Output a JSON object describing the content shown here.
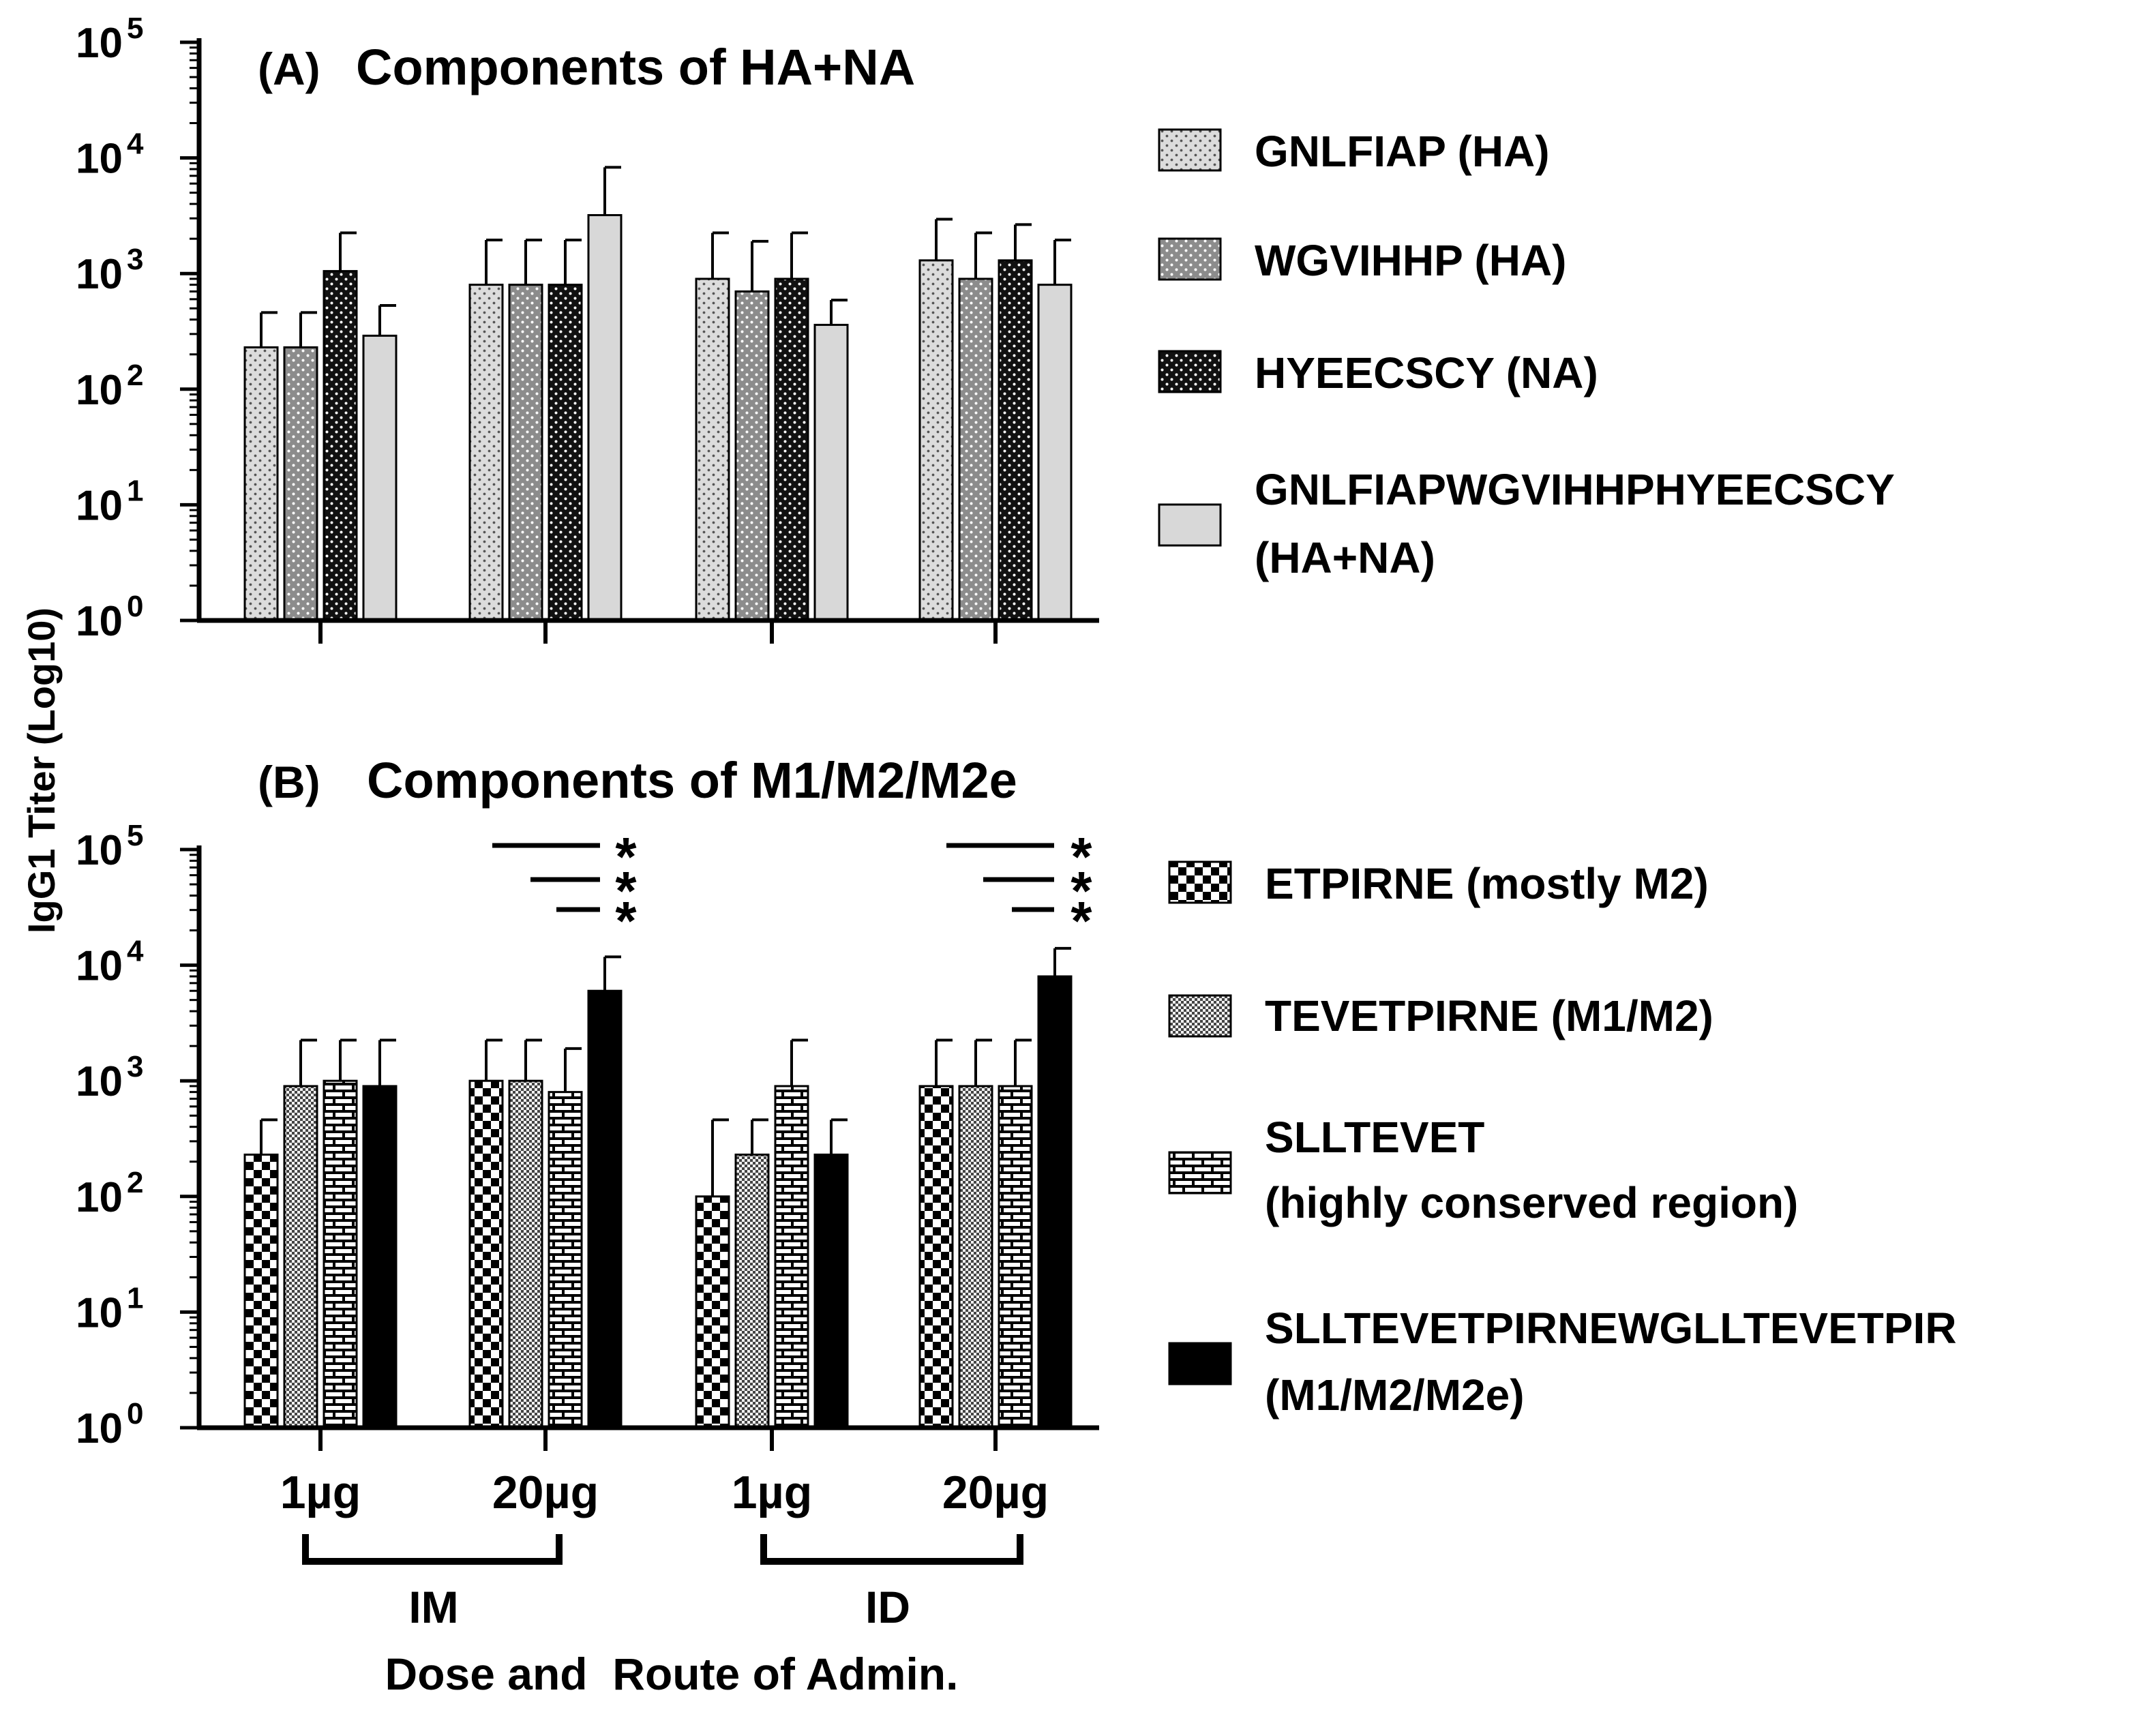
{
  "chart_data": [
    {
      "type": "bar",
      "panel": "A",
      "panel_label": "(A)",
      "title": "Components of HA+NA",
      "ylabel": "IgG1 Titer (Log10)",
      "yscale": "log",
      "ylim": [
        1,
        100000
      ],
      "y_ticks": [
        {
          "base": "10",
          "exp": "0"
        },
        {
          "base": "10",
          "exp": "1"
        },
        {
          "base": "10",
          "exp": "2"
        },
        {
          "base": "10",
          "exp": "3"
        },
        {
          "base": "10",
          "exp": "4"
        },
        {
          "base": "10",
          "exp": "5"
        }
      ],
      "categories": [
        "1µg IM",
        "20µg IM",
        "1µg ID",
        "20µg ID"
      ],
      "legend_position": "right",
      "series": [
        {
          "name": "GNLFIAP (HA)",
          "pattern": "dots-light",
          "values": [
            230,
            800,
            900,
            1300
          ],
          "error_upper": [
            460,
            1950,
            2250,
            2950
          ]
        },
        {
          "name": "WGVIHHP (HA)",
          "pattern": "dots-mid",
          "values": [
            230,
            800,
            700,
            900
          ],
          "error_upper": [
            460,
            1950,
            1900,
            2250
          ]
        },
        {
          "name": "HYEECSCY (NA)",
          "pattern": "dots-dark",
          "values": [
            1050,
            800,
            900,
            1300
          ],
          "error_upper": [
            2250,
            1950,
            2250,
            2650
          ]
        },
        {
          "name_lines": [
            "GNLFIAPWGVIHHPHYEECSCY",
            "(HA+NA)"
          ],
          "pattern": "solid-light",
          "values": [
            290,
            3200,
            360,
            800
          ],
          "error_upper": [
            530,
            8300,
            590,
            1950
          ]
        }
      ]
    },
    {
      "type": "bar",
      "panel": "B",
      "panel_label": "(B)",
      "title": "Components of M1/M2/M2e",
      "ylabel": "IgG1 Titer (Log10)",
      "yscale": "log",
      "ylim": [
        1,
        100000
      ],
      "y_ticks": [
        {
          "base": "10",
          "exp": "0"
        },
        {
          "base": "10",
          "exp": "1"
        },
        {
          "base": "10",
          "exp": "2"
        },
        {
          "base": "10",
          "exp": "3"
        },
        {
          "base": "10",
          "exp": "4"
        },
        {
          "base": "10",
          "exp": "5"
        }
      ],
      "categories": [
        "1µg",
        "20µg",
        "1µg",
        "20µg"
      ],
      "group_labels": [
        "IM",
        "ID"
      ],
      "xlabel": "Dose and  Route of Admin.",
      "legend_position": "right",
      "significance_marker": "*",
      "series": [
        {
          "name": "ETPIRNE (mostly M2)",
          "pattern": "checker",
          "values": [
            230,
            1000,
            100,
            900
          ],
          "error_upper": [
            460,
            2250,
            460,
            2250
          ]
        },
        {
          "name": "TEVETPIRNE (M1/M2)",
          "pattern": "fine-checker",
          "values": [
            900,
            1000,
            230,
            900
          ],
          "error_upper": [
            2250,
            2250,
            460,
            2250
          ]
        },
        {
          "name_lines": [
            "SLLTEVET",
            "(highly conserved region)"
          ],
          "pattern": "brick",
          "values": [
            1000,
            800,
            900,
            900
          ],
          "error_upper": [
            2250,
            1900,
            2250,
            2250
          ]
        },
        {
          "name_lines": [
            "SLLTEVETPIRNEWGLLTEVETPIR",
            "(M1/M2/M2e)"
          ],
          "pattern": "solid-black",
          "values": [
            900,
            6000,
            230,
            8000
          ],
          "error_upper": [
            2250,
            11800,
            460,
            14000
          ]
        }
      ]
    }
  ]
}
